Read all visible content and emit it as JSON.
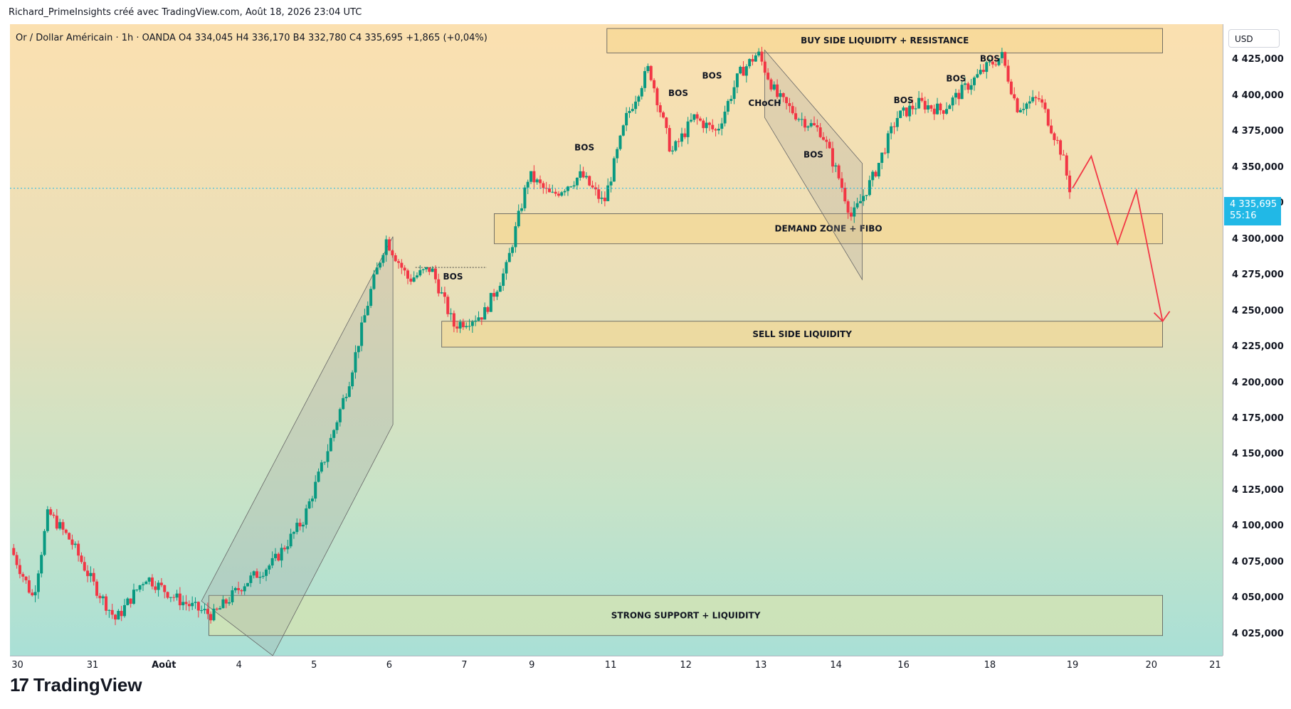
{
  "header": {
    "credit": "Richard_PrimeInsights créé avec TradingView.com, Août 18, 2026 23:04 UTC",
    "symbol_line": "Or / Dollar Américain · 1h · OANDA  O4 334,045  H4 336,170  B4 332,780  C4 335,695  +1,865 (+0,04%)"
  },
  "axis": {
    "currency": "USD",
    "current_price": "4 335,695",
    "countdown": "55:16"
  },
  "brand": {
    "logo_text": "TradingView"
  },
  "colors": {
    "up_candle": "#089981",
    "down_candle": "#f23645",
    "zone_fill": "#f5d58a",
    "support_fill": "#d6e3b0",
    "arrow": "#f23645",
    "price_tag": "#21b8e6"
  },
  "chart_data": {
    "type": "candlestick",
    "title": "Or / Dollar Américain · 1h · OANDA",
    "ylim": [
      4010000,
      4450000
    ],
    "y_ticks": [
      "4 425,000",
      "4 400,000",
      "4 375,000",
      "4 350,000",
      "4 325,000",
      "4 300,000",
      "4 275,000",
      "4 250,000",
      "4 225,000",
      "4 200,000",
      "4 175,000",
      "4 150,000",
      "4 125,000",
      "4 100,000",
      "4 075,000",
      "4 050,000",
      "4 025,000"
    ],
    "y_tick_values": [
      4425000,
      4400000,
      4375000,
      4350000,
      4325000,
      4300000,
      4275000,
      4250000,
      4225000,
      4200000,
      4175000,
      4150000,
      4125000,
      4100000,
      4075000,
      4050000,
      4025000
    ],
    "x_ticks": [
      "30",
      "31",
      "Août",
      "4",
      "5",
      "6",
      "7",
      "9",
      "11",
      "12",
      "13",
      "14",
      "16",
      "18",
      "19",
      "20",
      "21"
    ],
    "x_tick_index": [
      0,
      1,
      2,
      3,
      4,
      5,
      6,
      7,
      8,
      9,
      10,
      11,
      12,
      13,
      14,
      15,
      16
    ],
    "price_path": [
      {
        "t": 0.0,
        "p": 4085000
      },
      {
        "t": 0.3,
        "p": 4050000
      },
      {
        "t": 0.5,
        "p": 4110000
      },
      {
        "t": 0.8,
        "p": 4090000
      },
      {
        "t": 1.1,
        "p": 4060000
      },
      {
        "t": 1.4,
        "p": 4035000
      },
      {
        "t": 1.8,
        "p": 4065000
      },
      {
        "t": 2.2,
        "p": 4050000
      },
      {
        "t": 2.5,
        "p": 4042000
      },
      {
        "t": 2.7,
        "p": 4038000
      },
      {
        "t": 3.1,
        "p": 4060000
      },
      {
        "t": 3.5,
        "p": 4075000
      },
      {
        "t": 3.9,
        "p": 4105000
      },
      {
        "t": 4.2,
        "p": 4150000
      },
      {
        "t": 4.5,
        "p": 4200000
      },
      {
        "t": 4.8,
        "p": 4265000
      },
      {
        "t": 5.0,
        "p": 4300000
      },
      {
        "t": 5.3,
        "p": 4272000
      },
      {
        "t": 5.6,
        "p": 4280000
      },
      {
        "t": 5.9,
        "p": 4240000
      },
      {
        "t": 6.3,
        "p": 4248000
      },
      {
        "t": 6.6,
        "p": 4280000
      },
      {
        "t": 6.9,
        "p": 4345000
      },
      {
        "t": 7.2,
        "p": 4330000
      },
      {
        "t": 7.6,
        "p": 4345000
      },
      {
        "t": 7.9,
        "p": 4325000
      },
      {
        "t": 8.2,
        "p": 4385000
      },
      {
        "t": 8.5,
        "p": 4420000
      },
      {
        "t": 8.8,
        "p": 4360000
      },
      {
        "t": 9.1,
        "p": 4385000
      },
      {
        "t": 9.4,
        "p": 4375000
      },
      {
        "t": 9.7,
        "p": 4415000
      },
      {
        "t": 9.95,
        "p": 4430000
      },
      {
        "t": 10.2,
        "p": 4400000
      },
      {
        "t": 10.5,
        "p": 4385000
      },
      {
        "t": 10.8,
        "p": 4375000
      },
      {
        "t": 11.05,
        "p": 4340000
      },
      {
        "t": 11.2,
        "p": 4315000
      },
      {
        "t": 11.5,
        "p": 4345000
      },
      {
        "t": 11.8,
        "p": 4385000
      },
      {
        "t": 12.1,
        "p": 4395000
      },
      {
        "t": 12.4,
        "p": 4390000
      },
      {
        "t": 12.7,
        "p": 4405000
      },
      {
        "t": 13.0,
        "p": 4420000
      },
      {
        "t": 13.2,
        "p": 4428000
      },
      {
        "t": 13.4,
        "p": 4392000
      },
      {
        "t": 13.7,
        "p": 4398000
      },
      {
        "t": 14.0,
        "p": 4360000
      },
      {
        "t": 14.1,
        "p": 4335695
      }
    ],
    "projection": [
      {
        "t": 14.1,
        "p": 4335695
      },
      {
        "t": 14.35,
        "p": 4358000
      },
      {
        "t": 14.7,
        "p": 4297000
      },
      {
        "t": 14.95,
        "p": 4334000
      },
      {
        "t": 15.3,
        "p": 4243000
      }
    ],
    "zones": [
      {
        "label": "BUY SIDE LIQUIDITY + RESISTANCE",
        "from_t": 7.9,
        "to_t": 15.3,
        "low": 4430000,
        "high": 4447000
      },
      {
        "label": "DEMAND ZONE + FIBO",
        "from_t": 6.4,
        "to_t": 15.3,
        "low": 4297000,
        "high": 4318000
      },
      {
        "label": "SELL SIDE LIQUIDITY",
        "from_t": 5.7,
        "to_t": 15.3,
        "low": 4225000,
        "high": 4243000
      },
      {
        "label": "STRONG SUPPORT + LIQUIDITY",
        "from_t": 2.6,
        "to_t": 15.3,
        "low": 4024000,
        "high": 4052000
      }
    ],
    "annotations": [
      {
        "text": "BOS",
        "t": 5.85,
        "p": 4272000
      },
      {
        "text": "BOS",
        "t": 7.6,
        "p": 4362000
      },
      {
        "text": "BOS",
        "t": 8.85,
        "p": 4400000
      },
      {
        "text": "BOS",
        "t": 9.3,
        "p": 4412000
      },
      {
        "text": "CHoCH",
        "t": 10.0,
        "p": 4393000
      },
      {
        "text": "BOS",
        "t": 10.65,
        "p": 4357000
      },
      {
        "text": "BOS",
        "t": 11.85,
        "p": 4395000
      },
      {
        "text": "BOS",
        "t": 12.55,
        "p": 4410000
      },
      {
        "text": "BOS",
        "t": 13.0,
        "p": 4424000
      }
    ]
  }
}
